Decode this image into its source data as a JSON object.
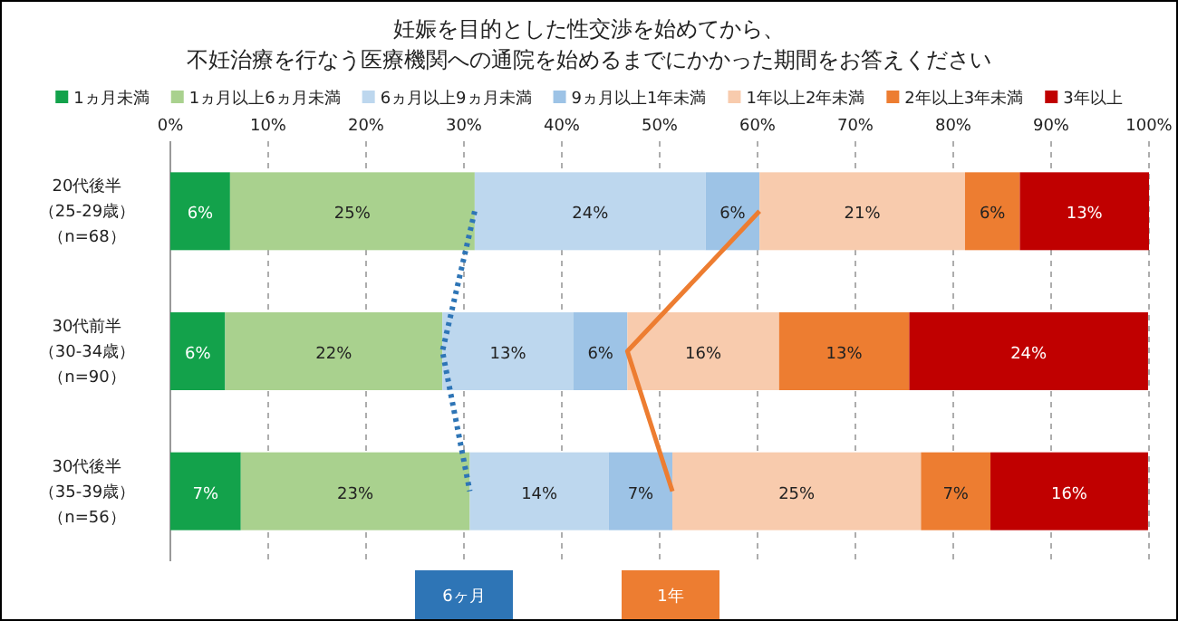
{
  "chart_data": {
    "type": "bar",
    "orientation": "horizontal",
    "stacked": true,
    "title": "妊娠を目的とした性交渉を始めてから、",
    "subtitle": "不妊治療を行なう医療機関への通院を始めるまでにかかった期間をお答えください",
    "categories": [
      "20代後半（25-29歳）（n=68）",
      "30代前半（30-34歳）（n=90）",
      "30代後半（35-39歳）（n=56）"
    ],
    "series": [
      {
        "name": "1ヵ月未満",
        "color": "#13a24b",
        "values": [
          6.1,
          5.6,
          7.2
        ],
        "value_labels": [
          "6%",
          "6%",
          "7%"
        ]
      },
      {
        "name": "1ヵ月以上6ヵ月未満",
        "color": "#a9d18e",
        "values": [
          25.0,
          22.2,
          23.4
        ],
        "value_labels": [
          "25%",
          "22%",
          "23%"
        ]
      },
      {
        "name": "6ヵ月以上9ヵ月未満",
        "color": "#bdd7ee",
        "values": [
          23.6,
          13.4,
          14.2
        ],
        "value_labels": [
          "24%",
          "13%",
          "14%"
        ]
      },
      {
        "name": "9ヵ月以上1年未満",
        "color": "#9dc3e6",
        "values": [
          5.5,
          5.5,
          6.5
        ],
        "value_labels": [
          "6%",
          "6%",
          "7%"
        ]
      },
      {
        "name": "1年以上2年未満",
        "color": "#f8cbad",
        "values": [
          21.0,
          15.5,
          25.4
        ],
        "value_labels": [
          "21%",
          "16%",
          "25%"
        ]
      },
      {
        "name": "2年以上3年未満",
        "color": "#ed7d31",
        "values": [
          5.6,
          13.3,
          7.1
        ],
        "value_labels": [
          "6%",
          "13%",
          "7%"
        ]
      },
      {
        "name": "3年以上",
        "color": "#c00000",
        "values": [
          13.2,
          24.4,
          16.1
        ],
        "value_labels": [
          "13%",
          "24%",
          "16%"
        ]
      },
      {
        "name": "6ヶ月",
        "type": "line",
        "line_style": "dotted",
        "color": "#2e75b6",
        "values": [
          31.1,
          27.8,
          30.6
        ]
      },
      {
        "name": "1年",
        "type": "line",
        "line_style": "solid",
        "color": "#ed7d31",
        "values": [
          60.2,
          46.7,
          51.3
        ]
      }
    ],
    "xlim": [
      0,
      100
    ],
    "xticks": [
      {
        "value": 0,
        "label": "0%"
      },
      {
        "value": 10,
        "label": "10%"
      },
      {
        "value": 20,
        "label": "20%"
      },
      {
        "value": 30,
        "label": "30%"
      },
      {
        "value": 40,
        "label": "40%"
      },
      {
        "value": 50,
        "label": "50%"
      },
      {
        "value": 60,
        "label": "60%"
      },
      {
        "value": 70,
        "label": "70%"
      },
      {
        "value": 80,
        "label": "80%"
      },
      {
        "value": 90,
        "label": "90%"
      },
      {
        "value": 100,
        "label": "100%"
      }
    ],
    "grid": "x",
    "legend": "top"
  }
}
